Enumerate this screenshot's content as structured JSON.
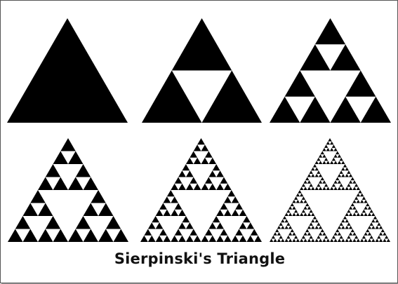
{
  "caption": "Sierpinski's Triangle",
  "colors": {
    "fill": "#000000",
    "background": "#ffffff",
    "border": "#555555",
    "shadow": "#9a9a9a",
    "caption": "#111111"
  },
  "figures": [
    {
      "name": "sierpinski-level-0",
      "iterations": 0
    },
    {
      "name": "sierpinski-level-1",
      "iterations": 1
    },
    {
      "name": "sierpinski-level-2",
      "iterations": 2
    },
    {
      "name": "sierpinski-level-3",
      "iterations": 3
    },
    {
      "name": "sierpinski-level-4",
      "iterations": 4
    },
    {
      "name": "sierpinski-level-5",
      "iterations": 5
    }
  ]
}
